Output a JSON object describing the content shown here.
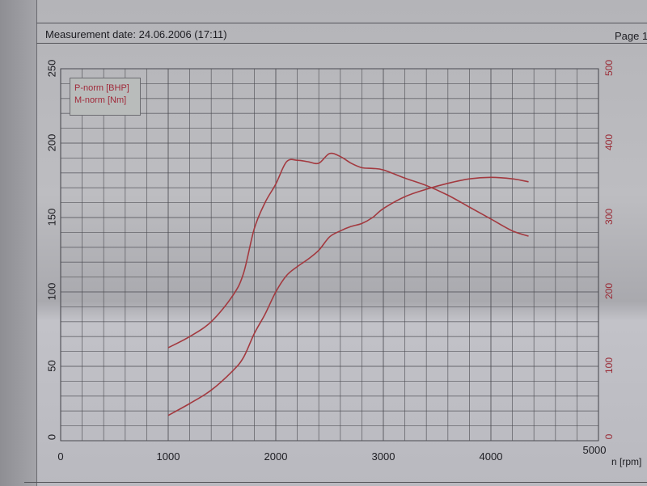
{
  "header": {
    "measurement_date": "Measurement date: 24.06.2006 (17:11)",
    "page": "Page 1"
  },
  "legend": {
    "items": [
      "P-norm [BHP]",
      "M-norm [Nm]"
    ]
  },
  "axes": {
    "x_ticks": [
      "0",
      "1000",
      "2000",
      "3000",
      "4000",
      "5000"
    ],
    "x_label": "n [rpm]",
    "y_left_ticks": [
      "0",
      "50",
      "100",
      "150",
      "200",
      "250"
    ],
    "y_right_ticks": [
      "0",
      "100",
      "200",
      "300",
      "400",
      "500"
    ]
  },
  "colors": {
    "curve": "#a3393f",
    "grid": "#4a4a50",
    "right_axis_text": "#9a2a35",
    "legend_text": "#a02a3a"
  },
  "chart_data": {
    "type": "line",
    "title": "Measurement date: 24.06.2006 (17:11)",
    "xlabel": "n [rpm]",
    "ylabel_left": "P-norm [BHP]",
    "ylabel_right": "M-norm [Nm]",
    "xlim": [
      0,
      5000
    ],
    "ylim_left": [
      0,
      250
    ],
    "ylim_right": [
      0,
      500
    ],
    "grid": true,
    "legend_position": "top-left",
    "x": [
      1000,
      1200,
      1400,
      1600,
      1700,
      1800,
      1900,
      2000,
      2100,
      2200,
      2300,
      2400,
      2500,
      2600,
      2700,
      2800,
      2900,
      3000,
      3200,
      3400,
      3600,
      3800,
      4000,
      4200,
      4350
    ],
    "series": [
      {
        "name": "P-norm [BHP]",
        "axis": "left",
        "values": [
          17,
          25,
          34,
          47,
          56,
          72,
          85,
          100,
          111,
          117,
          122,
          128,
          137,
          141,
          144,
          146,
          150,
          156,
          164,
          169,
          173,
          176,
          177,
          176,
          174
        ]
      },
      {
        "name": "M-norm [Nm]",
        "axis": "right",
        "values": [
          125,
          140,
          160,
          195,
          225,
          285,
          320,
          345,
          375,
          377,
          375,
          373,
          386,
          382,
          373,
          367,
          366,
          364,
          353,
          343,
          330,
          314,
          298,
          282,
          275
        ]
      }
    ]
  }
}
